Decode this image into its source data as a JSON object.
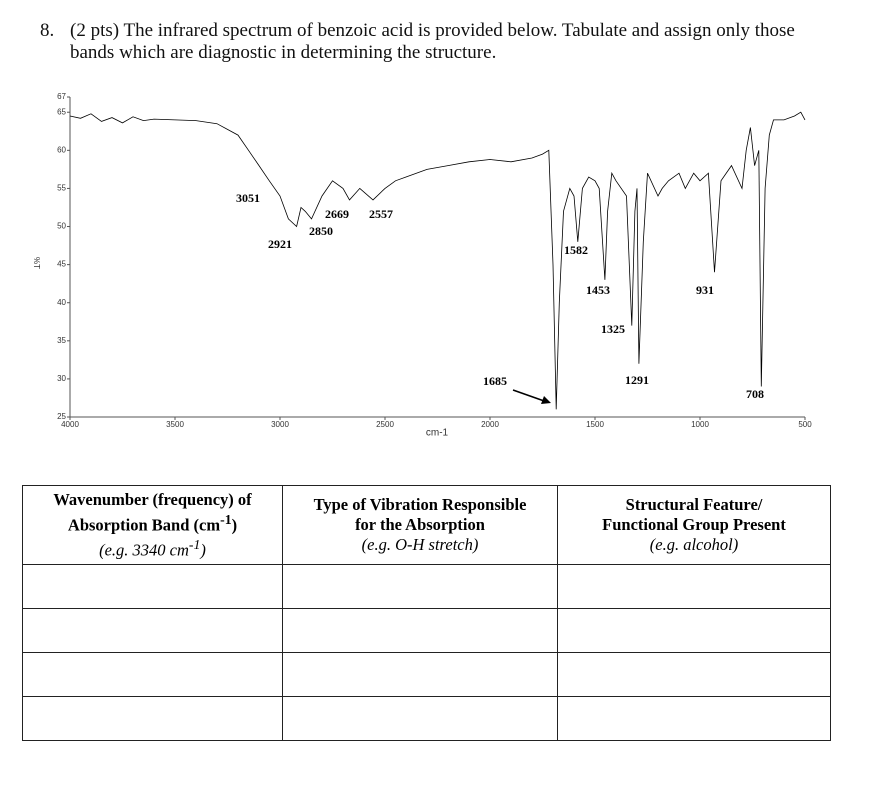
{
  "question": {
    "number": "8.",
    "text": "(2 pts) The infrared spectrum of benzoic acid is provided below.  Tabulate and assign only those bands which are diagnostic in determining the structure."
  },
  "chart_data": {
    "type": "line",
    "xlabel": "cm-1",
    "ylabel": "%T",
    "xlim": [
      4000,
      500
    ],
    "ylim": [
      25,
      67
    ],
    "xticks": [
      4000,
      3500,
      3000,
      2500,
      2000,
      1500,
      1000,
      500
    ],
    "yticks": [
      25,
      30,
      35,
      40,
      45,
      50,
      55,
      60,
      65,
      67
    ],
    "series": [
      {
        "color": "#000000",
        "x": [
          4000,
          3950,
          3900,
          3850,
          3800,
          3750,
          3700,
          3650,
          3600,
          3500,
          3400,
          3300,
          3200,
          3150,
          3100,
          3051,
          3000,
          2960,
          2921,
          2900,
          2880,
          2850,
          2800,
          2750,
          2700,
          2669,
          2620,
          2557,
          2500,
          2450,
          2400,
          2300,
          2200,
          2100,
          2000,
          1900,
          1800,
          1750,
          1720,
          1700,
          1685,
          1670,
          1650,
          1620,
          1600,
          1582,
          1560,
          1530,
          1500,
          1480,
          1453,
          1440,
          1420,
          1400,
          1350,
          1325,
          1310,
          1300,
          1291,
          1270,
          1250,
          1200,
          1180,
          1150,
          1100,
          1070,
          1030,
          1000,
          960,
          931,
          900,
          850,
          800,
          780,
          760,
          740,
          720,
          708,
          690,
          670,
          650,
          600,
          550,
          520,
          500
        ],
        "values": [
          64.5,
          64.2,
          64.8,
          63.8,
          64.3,
          63.6,
          64.4,
          63.9,
          64.1,
          64,
          63.9,
          63.5,
          62,
          60,
          58,
          56,
          54,
          51,
          50,
          52.5,
          52,
          51,
          54,
          56,
          55,
          53.5,
          55,
          53.5,
          55,
          56,
          56.5,
          57.5,
          58,
          58.5,
          58.8,
          58.5,
          59,
          59.5,
          60,
          45,
          26,
          40,
          52,
          55,
          54,
          48,
          55,
          56.5,
          56,
          55,
          43,
          52,
          57,
          56,
          54,
          37,
          52,
          55,
          32,
          48,
          57,
          54,
          55,
          56,
          57,
          55,
          57,
          56,
          57,
          44,
          56,
          58,
          55,
          60,
          63,
          58,
          60,
          29,
          55,
          62,
          64,
          64,
          64.5,
          65,
          64
        ]
      }
    ],
    "annotations": [
      3051,
      2921,
      2850,
      2669,
      2557,
      1685,
      1582,
      1453,
      1325,
      1291,
      931,
      708
    ]
  },
  "table": {
    "headers": [
      {
        "line1": "Wavenumber (frequency) of",
        "line2a": "Absorption Band (cm",
        "line2sup": "-1",
        "line2b": ")",
        "example_a": "(e.g. 3340 cm",
        "example_sup": "-1",
        "example_b": ")"
      },
      {
        "line1": "Type of Vibration Responsible",
        "line2a": "for the Absorption",
        "example_a": "(e.g. O-H stretch)"
      },
      {
        "line1": "Structural Feature/",
        "line2a": "Functional Group Present",
        "example_a": "(e.g. alcohol)"
      }
    ]
  }
}
